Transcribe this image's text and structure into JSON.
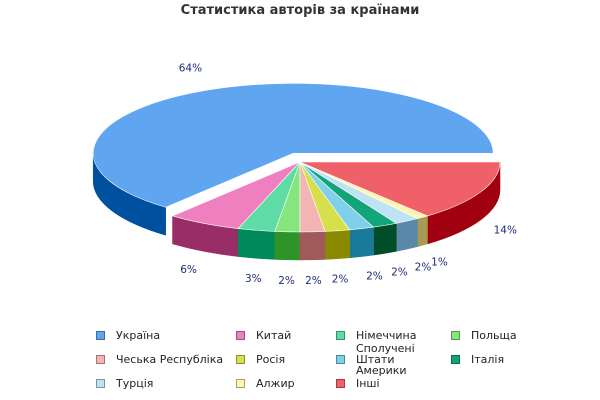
{
  "chart_data": {
    "type": "pie",
    "title": "Статистика авторів за країнами",
    "slices": [
      {
        "label": "Україна",
        "value": 64,
        "pct_label": "64%",
        "color": "#60a5f0",
        "side": "#0050a0"
      },
      {
        "label": "Китай",
        "value": 6,
        "pct_label": "6%",
        "color": "#f07fbf",
        "side": "#992e66"
      },
      {
        "label": "Німеччина",
        "value": 3,
        "pct_label": "3%",
        "color": "#5fdca5",
        "side": "#00895a"
      },
      {
        "label": "Польща",
        "value": 2,
        "pct_label": "2%",
        "color": "#85e67e",
        "side": "#2e9428"
      },
      {
        "label": "Чеська Республіка",
        "value": 2,
        "pct_label": "2%",
        "color": "#f5b4b4",
        "side": "#a05a5a"
      },
      {
        "label": "Росія",
        "value": 2,
        "pct_label": "2%",
        "color": "#d7e04b",
        "side": "#8a8a00"
      },
      {
        "label": "Сполучені Штати Америки",
        "value": 2,
        "pct_label": "2%",
        "color": "#7fd0e8",
        "side": "#1a7a9a"
      },
      {
        "label": "Італія",
        "value": 2,
        "pct_label": "2%",
        "color": "#12a57a",
        "side": "#004d2a"
      },
      {
        "label": "Турція",
        "value": 2,
        "pct_label": "2%",
        "color": "#bfe3f5",
        "side": "#5a88a8"
      },
      {
        "label": "Алжир",
        "value": 1,
        "pct_label": "1%",
        "color": "#fff5b0",
        "side": "#a89a50"
      },
      {
        "label": "Інші",
        "value": 14,
        "pct_label": "14%",
        "color": "#f06068",
        "side": "#a00010"
      }
    ],
    "legend": {
      "position": "bottom"
    }
  }
}
